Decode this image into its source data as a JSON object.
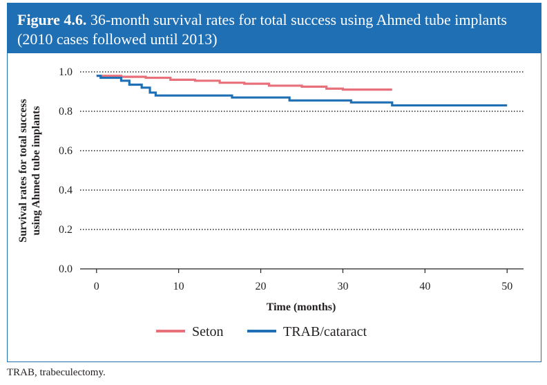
{
  "figure": {
    "label": "Figure 4.6.",
    "title": "36-month survival rates for total success using Ahmed tube implants (2010 cases followed until 2013)"
  },
  "footnote": "TRAB, trabeculectomy.",
  "colors": {
    "header": "#1f6fb5",
    "seton": "#e8707a",
    "trab": "#1f6fb5",
    "grid": "#231f20"
  },
  "chart_data": {
    "type": "line",
    "step": true,
    "title": "36-month survival rates for total success using Ahmed tube implants (2010 cases followed until 2013)",
    "xlabel": "Time (months)",
    "ylabel": "Survival rates for total success using Ahmed tube implants",
    "xlim": [
      -2,
      52
    ],
    "ylim": [
      0,
      1.0
    ],
    "xticks": [
      0,
      10,
      20,
      30,
      40,
      50
    ],
    "yticks": [
      0.0,
      0.2,
      0.4,
      0.6,
      0.8,
      1.0
    ],
    "ytick_labels": [
      "0.0",
      "0.2",
      "0.4",
      "0.6",
      "0.8",
      "1.0"
    ],
    "grid": "horizontal dotted",
    "legend_position": "bottom",
    "series": [
      {
        "name": "Seton",
        "color": "#e8707a",
        "points": [
          [
            0,
            0.98
          ],
          [
            3,
            0.975
          ],
          [
            6,
            0.97
          ],
          [
            9,
            0.96
          ],
          [
            12,
            0.955
          ],
          [
            15,
            0.945
          ],
          [
            18,
            0.94
          ],
          [
            21,
            0.93
          ],
          [
            25,
            0.925
          ],
          [
            28,
            0.915
          ],
          [
            30,
            0.91
          ],
          [
            36,
            0.91
          ]
        ]
      },
      {
        "name": "TRAB/cataract",
        "color": "#1f6fb5",
        "points": [
          [
            0,
            0.98
          ],
          [
            0.5,
            0.97
          ],
          [
            3,
            0.955
          ],
          [
            4,
            0.935
          ],
          [
            5.5,
            0.92
          ],
          [
            6.5,
            0.895
          ],
          [
            7.2,
            0.88
          ],
          [
            16.5,
            0.87
          ],
          [
            23.5,
            0.855
          ],
          [
            31,
            0.845
          ],
          [
            36,
            0.83
          ],
          [
            50,
            0.83
          ]
        ]
      }
    ]
  }
}
